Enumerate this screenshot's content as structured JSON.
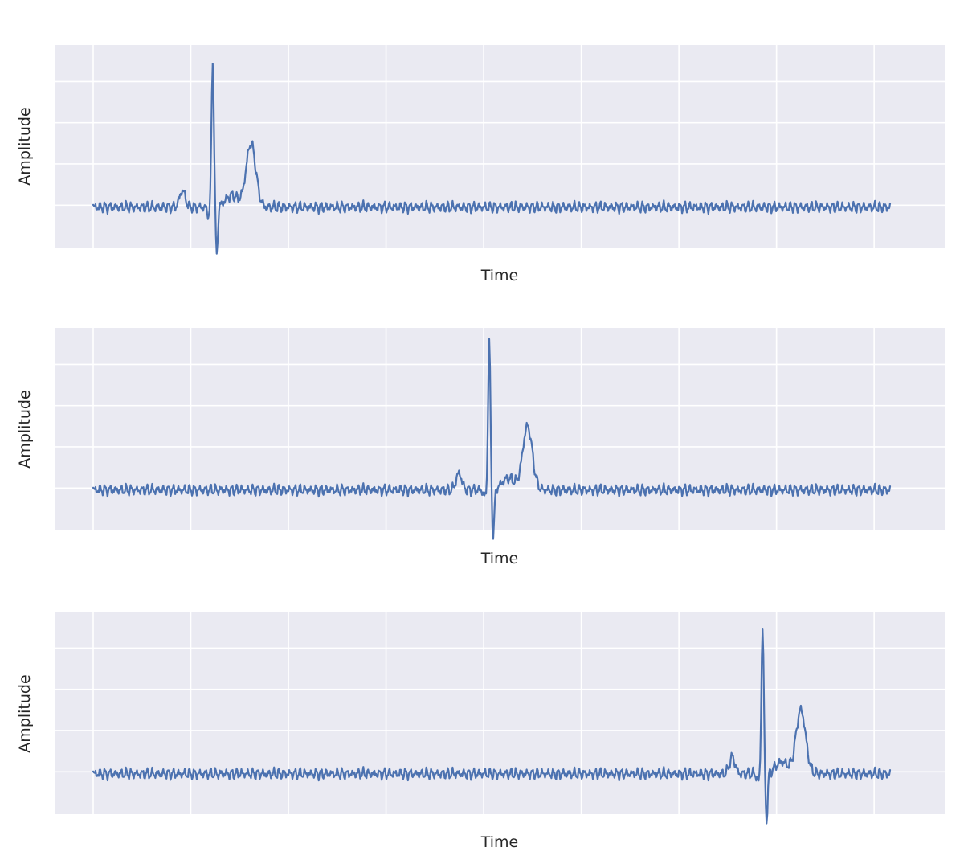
{
  "chart_data": [
    {
      "type": "line",
      "xlabel": "Time",
      "ylabel": "Amplitude",
      "x_range": [
        0,
        1000
      ],
      "y_range": [
        -0.35,
        1.55
      ],
      "grid": true,
      "x_ticks": [
        0,
        122.5,
        245,
        367.5,
        490,
        612.5,
        735,
        857.5,
        980
      ],
      "y_ticks": [
        0,
        0.42,
        0.84,
        1.26,
        1.68
      ],
      "beat_at": 150,
      "series": [
        {
          "color": "#4c72b0"
        }
      ]
    },
    {
      "type": "line",
      "xlabel": "Time",
      "ylabel": "Amplitude",
      "x_range": [
        0,
        1000
      ],
      "y_range": [
        -0.35,
        1.55
      ],
      "grid": true,
      "x_ticks": [
        0,
        122.5,
        245,
        367.5,
        490,
        612.5,
        735,
        857.5,
        980
      ],
      "y_ticks": [
        0,
        0.42,
        0.84,
        1.26,
        1.68
      ],
      "beat_at": 497,
      "series": [
        {
          "color": "#4c72b0"
        }
      ]
    },
    {
      "type": "line",
      "xlabel": "Time",
      "ylabel": "Amplitude",
      "x_range": [
        0,
        1000
      ],
      "y_range": [
        -0.35,
        1.55
      ],
      "grid": true,
      "x_ticks": [
        0,
        122.5,
        245,
        367.5,
        490,
        612.5,
        735,
        857.5,
        980
      ],
      "y_ticks": [
        0,
        0.42,
        0.84,
        1.26,
        1.68
      ],
      "beat_at": 840,
      "series": [
        {
          "color": "#4c72b0"
        }
      ]
    }
  ]
}
